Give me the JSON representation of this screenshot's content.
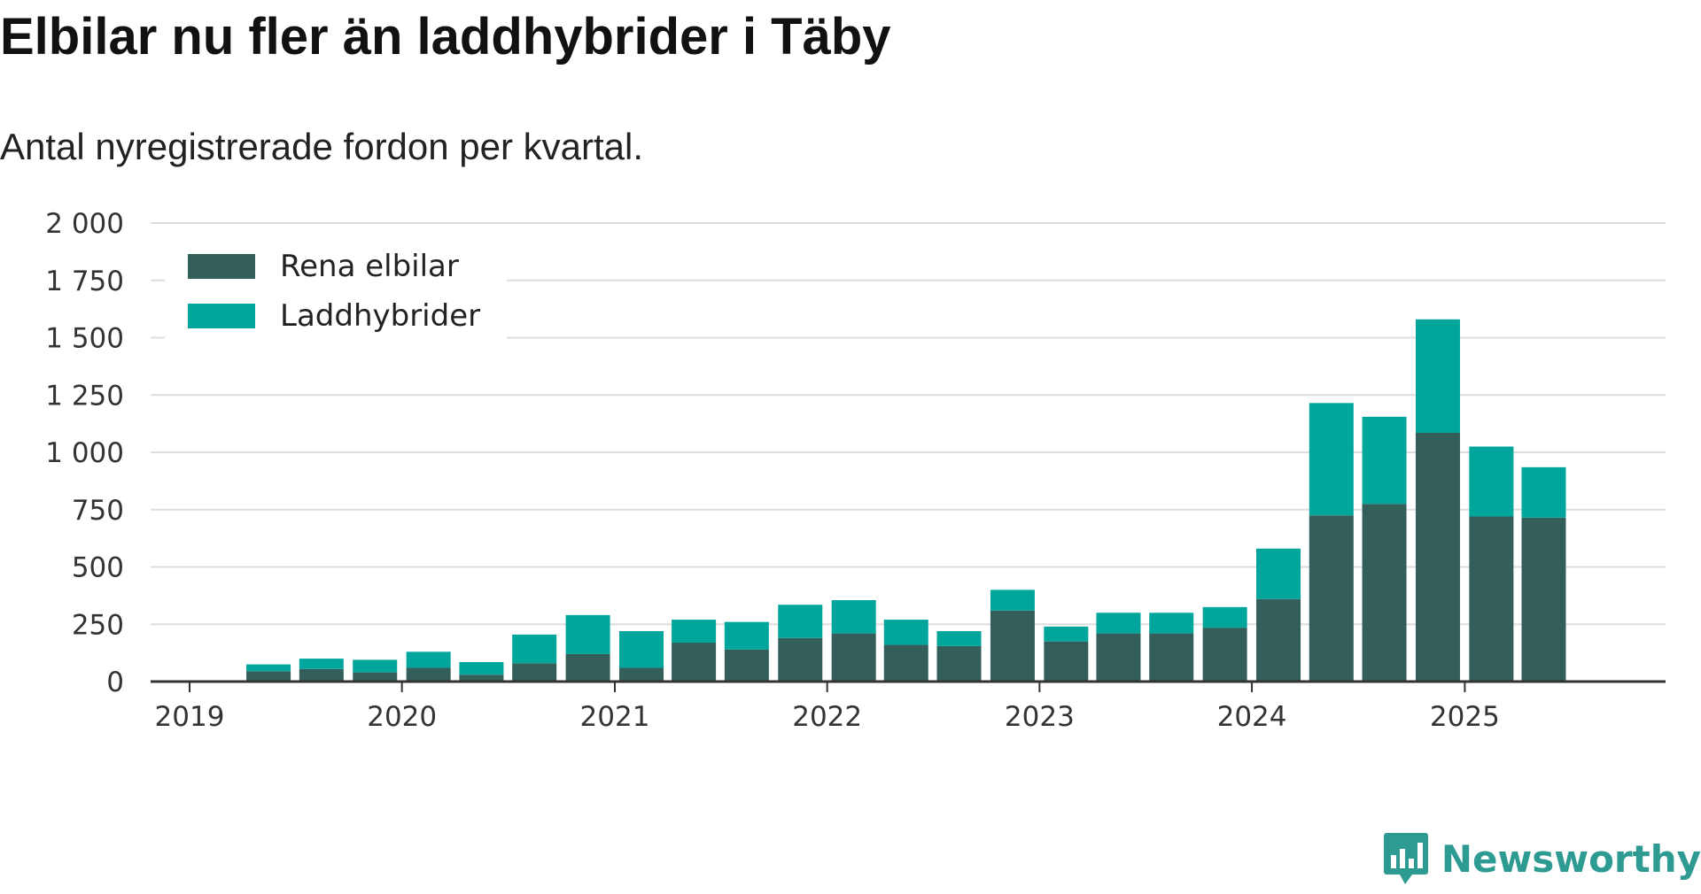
{
  "title": "Elbilar nu fler än laddhybrider i Täby",
  "subtitle": "Antal nyregistrerade fordon per kvartal.",
  "brand": {
    "name": "Newsworthy",
    "icon": "bar-chart-speech-bubble-icon",
    "color": "#2e9b93"
  },
  "colors": {
    "rena_elbilar": "#335e5a",
    "laddhybrider": "#00a69c",
    "grid": "#dddddd",
    "axis": "#333333"
  },
  "chart_data": {
    "type": "bar",
    "stacked": true,
    "title": "Elbilar nu fler än laddhybrider i Täby",
    "subtitle": "Antal nyregistrerade fordon per kvartal.",
    "xlabel": "",
    "ylabel": "",
    "ylim": [
      0,
      2000
    ],
    "yticks": [
      0,
      250,
      500,
      750,
      1000,
      1250,
      1500,
      1750,
      2000
    ],
    "ytick_labels": [
      "0",
      "250",
      "500",
      "750",
      "1 000",
      "1 250",
      "1 500",
      "1 750",
      "2 000"
    ],
    "xticks": [
      "2019",
      "2020",
      "2021",
      "2022",
      "2023",
      "2024",
      "2025"
    ],
    "xlim": [
      "2019-01-01",
      "2025-09-30"
    ],
    "grid": true,
    "legend": "top-left",
    "categories": [
      "2019-Q2",
      "2019-Q3",
      "2019-Q4",
      "2020-Q1",
      "2020-Q2",
      "2020-Q3",
      "2020-Q4",
      "2021-Q1",
      "2021-Q2",
      "2021-Q3",
      "2021-Q4",
      "2022-Q1",
      "2022-Q2",
      "2022-Q3",
      "2022-Q4",
      "2023-Q1",
      "2023-Q2",
      "2023-Q3",
      "2023-Q4",
      "2024-Q1",
      "2024-Q2",
      "2024-Q3",
      "2024-Q4",
      "2025-Q1",
      "2025-Q2"
    ],
    "series": [
      {
        "name": "Rena elbilar",
        "color": "#335e5a",
        "values": [
          45,
          55,
          40,
          60,
          30,
          80,
          120,
          60,
          170,
          140,
          190,
          210,
          160,
          155,
          310,
          175,
          210,
          210,
          235,
          360,
          725,
          775,
          1085,
          720,
          715
        ]
      },
      {
        "name": "Laddhybrider",
        "color": "#00a69c",
        "values": [
          30,
          45,
          55,
          70,
          55,
          125,
          170,
          160,
          100,
          120,
          145,
          145,
          110,
          65,
          90,
          65,
          90,
          90,
          90,
          220,
          490,
          380,
          495,
          305,
          220
        ]
      }
    ]
  }
}
